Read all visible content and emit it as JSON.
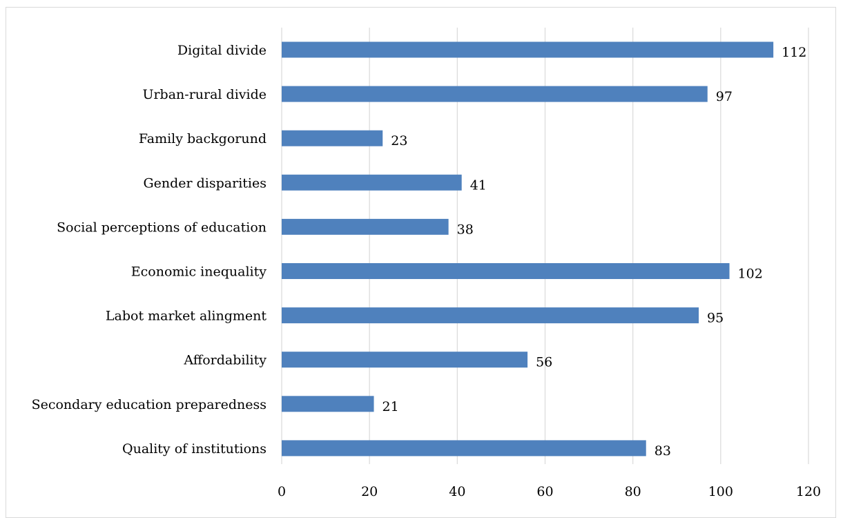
{
  "chart_data": {
    "type": "bar",
    "orientation": "horizontal",
    "title": "",
    "xlabel": "",
    "ylabel": "",
    "categories": [
      "Digital divide",
      "Urban-rural divide",
      "Family backgorund",
      "Gender disparities",
      "Social perceptions of education",
      "Economic inequality",
      "Labot market alingment",
      "Affordability",
      "Secondary education preparedness",
      "Quality of institutions"
    ],
    "values": [
      112,
      97,
      23,
      41,
      38,
      102,
      95,
      56,
      21,
      83
    ],
    "xlim": [
      0,
      120
    ],
    "xticks": [
      "0",
      "20",
      "40",
      "60",
      "80",
      "100",
      "120"
    ],
    "grid": true,
    "legend": "none",
    "bar_color": "#4f81bd",
    "grid_color": "#d9d9d9"
  }
}
